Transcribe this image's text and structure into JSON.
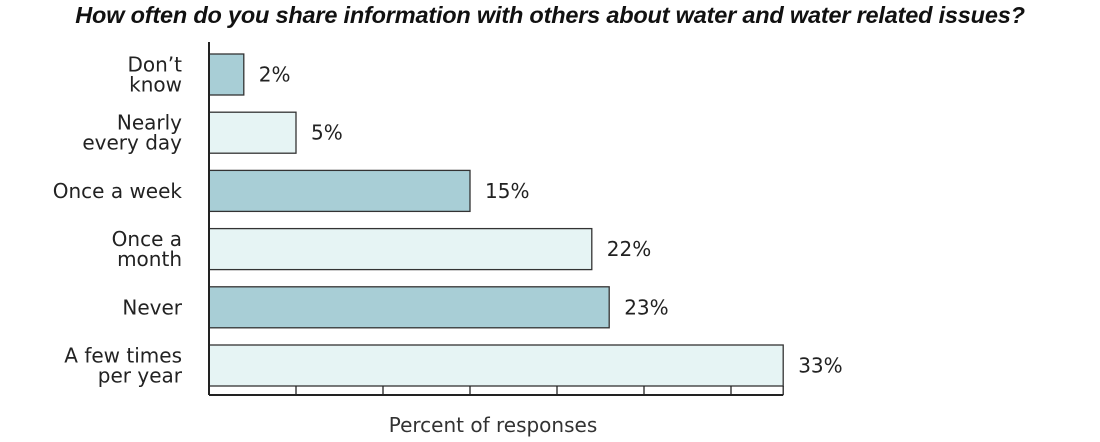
{
  "chart_data": {
    "type": "bar",
    "orientation": "horizontal",
    "title": "How often do you share information with others about water and water related issues?",
    "xlabel": "Percent of responses",
    "ylabel": "",
    "xlim": [
      0,
      33
    ],
    "grid": false,
    "legend": "none",
    "categories": [
      [
        "Don’t",
        "know"
      ],
      [
        "Nearly",
        "every day"
      ],
      [
        "Once a week"
      ],
      [
        "Once a",
        "month"
      ],
      [
        "Never"
      ],
      [
        "A few times",
        "per year"
      ]
    ],
    "values": [
      2,
      5,
      15,
      22,
      23,
      33
    ],
    "value_labels": [
      "2%",
      "5%",
      "15%",
      "22%",
      "23%",
      "33%"
    ],
    "bar_colors": [
      "#a8ced6",
      "#e6f4f4",
      "#a8ced6",
      "#e6f4f4",
      "#a8ced6",
      "#e6f4f4"
    ],
    "bar_stroke": "#333333"
  }
}
